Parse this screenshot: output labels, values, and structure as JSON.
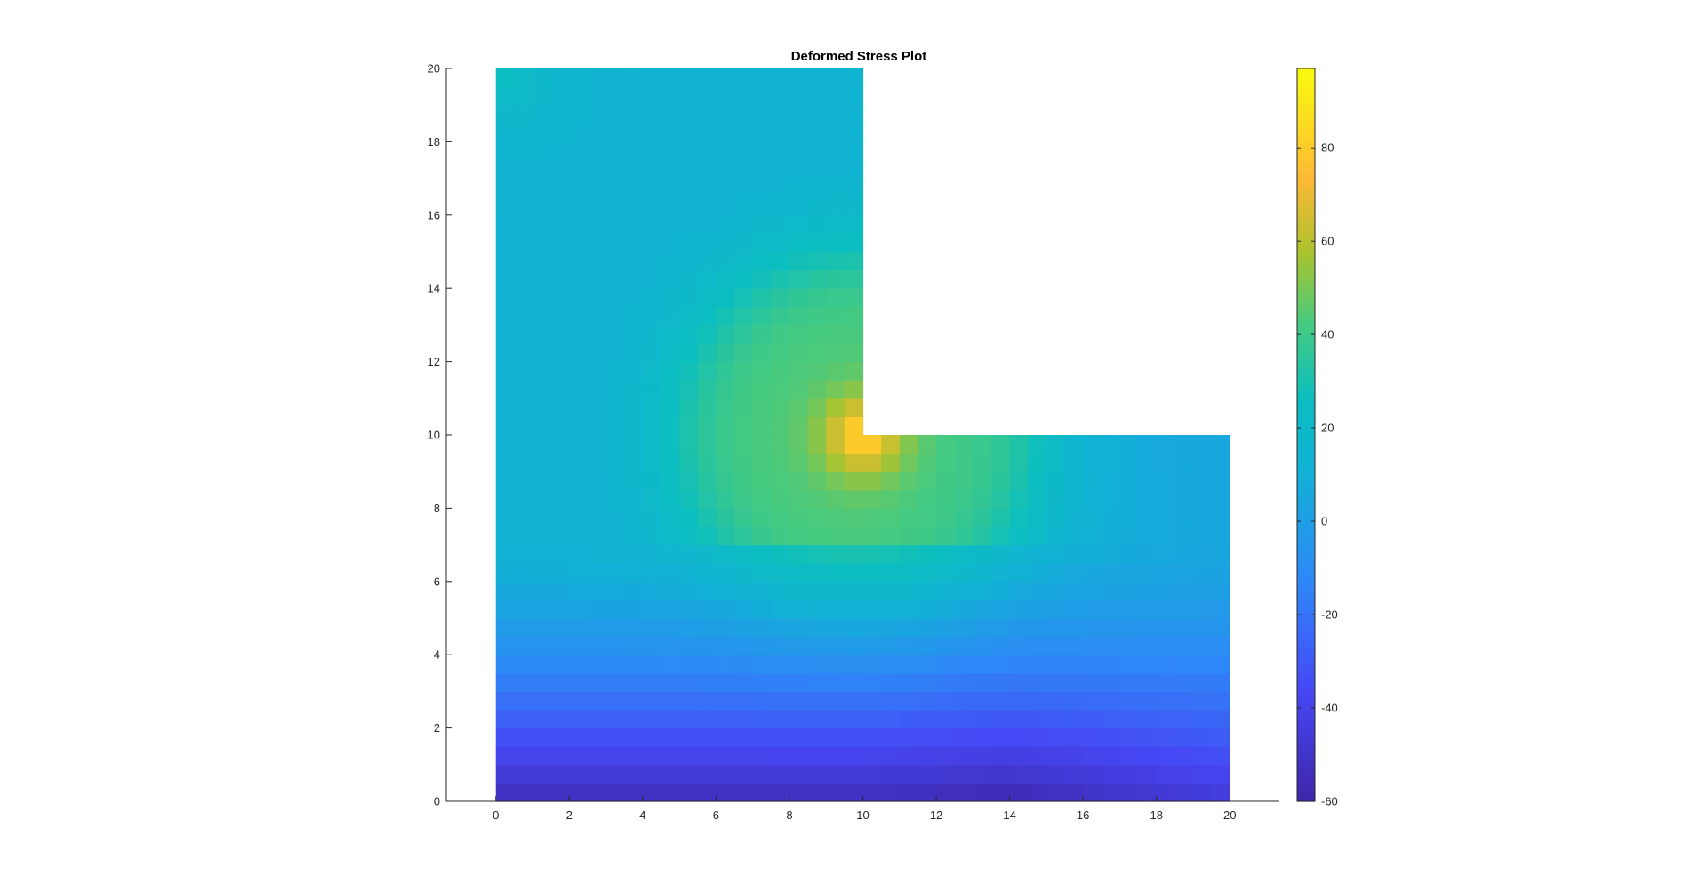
{
  "chart_data": {
    "type": "heatmap",
    "title": "Deformed Stress Plot",
    "xlabel": "",
    "ylabel": "",
    "xlim": [
      -1.35,
      21.35
    ],
    "ylim": [
      0,
      20
    ],
    "x_ticks": [
      "0",
      "2",
      "4",
      "6",
      "8",
      "10",
      "12",
      "14",
      "16",
      "18",
      "20"
    ],
    "y_ticks": [
      "0",
      "2",
      "4",
      "6",
      "8",
      "10",
      "12",
      "14",
      "16",
      "18",
      "20"
    ],
    "domain_shape": "L-shaped region: [0,10]x[0,20] union [10,20]x[0,10]",
    "colormap": "parula",
    "grid": false,
    "colorbar": {
      "range": [
        -60,
        97
      ],
      "ticks": [
        "-60",
        "-40",
        "-20",
        "0",
        "20",
        "40",
        "60",
        "80"
      ]
    },
    "stress_features": {
      "peak": {
        "x": 10,
        "y": 10,
        "value": 97
      },
      "top_left_corner": {
        "x": 0,
        "y": 20,
        "value": 30
      },
      "bottom_min": {
        "x": 5,
        "y": 0,
        "value": -55
      },
      "background_upper": 13,
      "background_right_edge": 3
    }
  }
}
